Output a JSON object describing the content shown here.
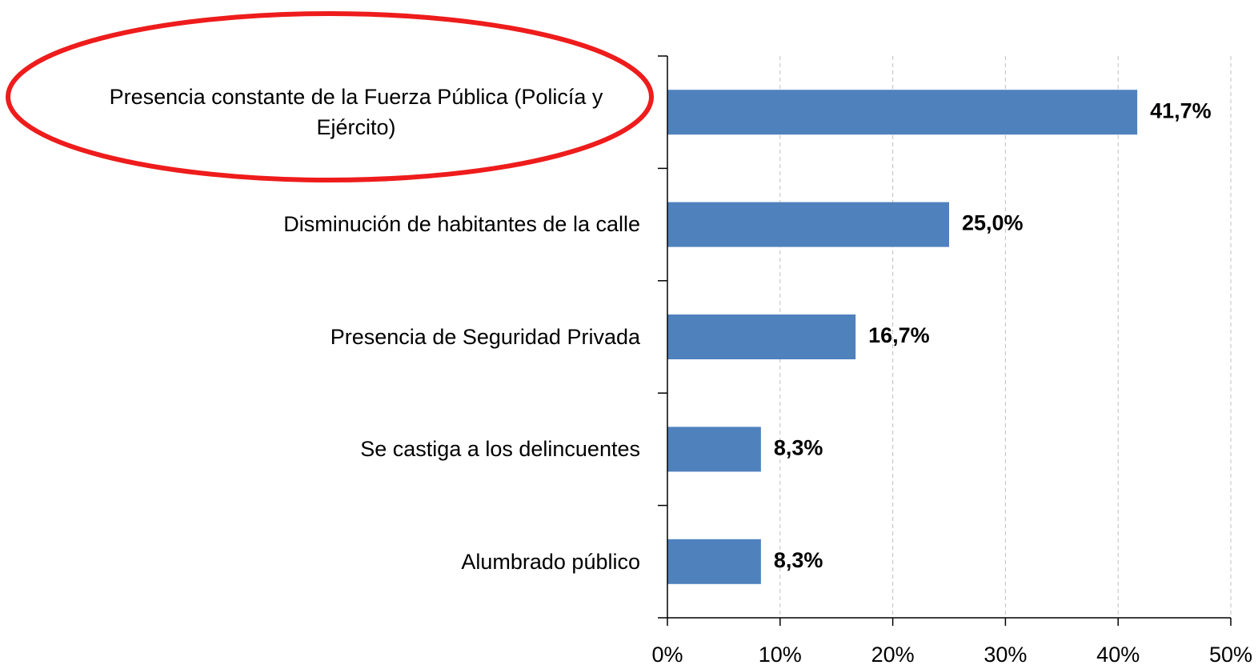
{
  "chart_data": {
    "type": "bar",
    "orientation": "horizontal",
    "categories": [
      "Presencia constante de la Fuerza Pública (Policía y Ejército)",
      "Disminución de habitantes de la calle",
      "Presencia de Seguridad Privada",
      "Se castiga a los delincuentes",
      "Alumbrado público"
    ],
    "values": [
      41.7,
      25.0,
      16.7,
      8.3,
      8.3
    ],
    "value_labels": [
      "41,7%",
      "25,0%",
      "16,7%",
      "8,3%",
      "8,3%"
    ],
    "color": "#4f81bd",
    "xlim": [
      0,
      50
    ],
    "xticks": [
      {
        "value": 0,
        "label": "0%"
      },
      {
        "value": 10,
        "label": "10%"
      },
      {
        "value": 20,
        "label": "20%"
      },
      {
        "value": 30,
        "label": "30%"
      },
      {
        "value": 40,
        "label": "40%"
      },
      {
        "value": 50,
        "label": "50%"
      }
    ],
    "grid": true
  }
}
